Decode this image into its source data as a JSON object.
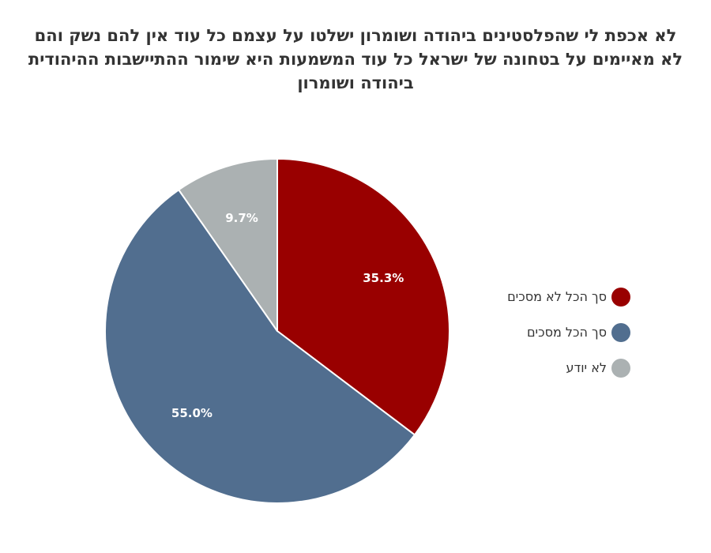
{
  "chart_data": {
    "type": "pie",
    "title": "לא אכפת לי שהפלסטינים ביהודה ושומרון ישלטו על עצמם כל עוד אין להם נשק והם לא מאיימים על בטחונה של ישראל כל עוד המשמעות היא שימור ההתיישבות ההיהודית ביהודה ושומרון",
    "slices": [
      {
        "label": "סך הכל לא מסכים",
        "value": 35.3,
        "display": "35.3%",
        "color": "#990000"
      },
      {
        "label": "סך הכל מסכים",
        "value": 55.0,
        "display": "55.0%",
        "color": "#516e8f"
      },
      {
        "label": "לא יודע",
        "value": 9.7,
        "display": "9.7%",
        "color": "#abb1b2"
      }
    ],
    "legend_position": "right",
    "start_angle_deg": 0,
    "direction": "clockwise"
  }
}
